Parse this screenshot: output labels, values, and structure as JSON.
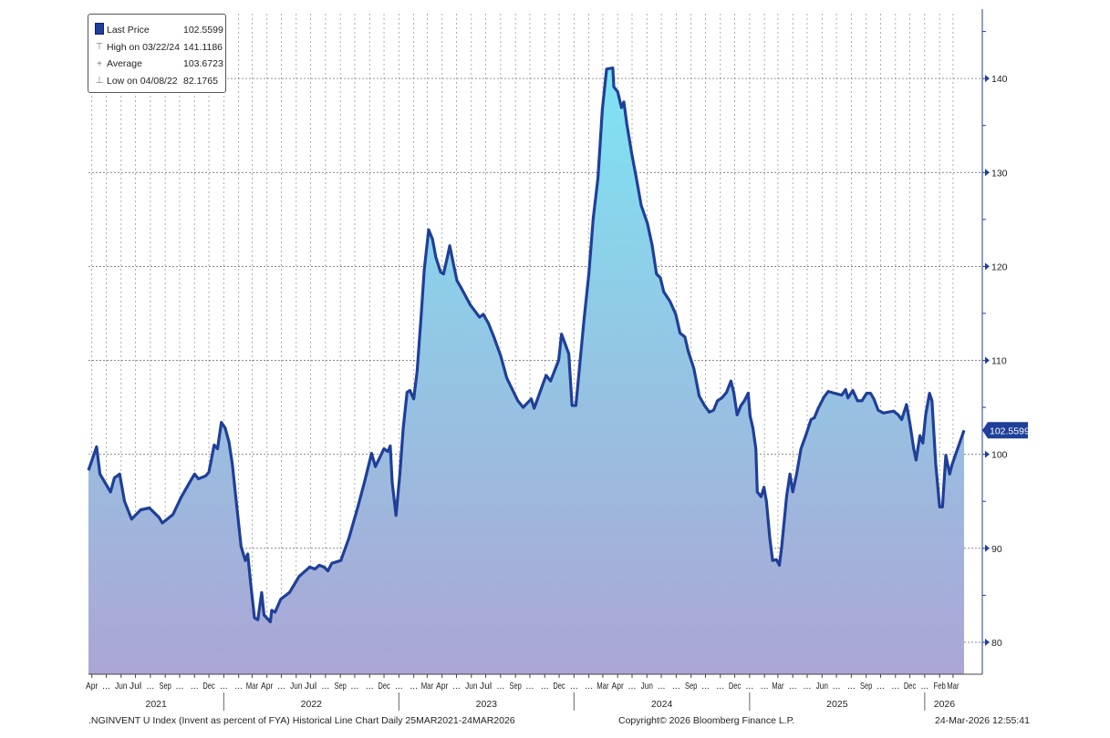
{
  "legend": {
    "items": [
      {
        "label": "Last Price",
        "value": "102.5599",
        "icon": "filled-square"
      },
      {
        "label": "High on 03/22/24",
        "value": "141.1186",
        "icon": "high-marker"
      },
      {
        "label": "Average",
        "value": "103.6723",
        "icon": "plus-marker"
      },
      {
        "label": "Low on 04/08/22",
        "value": "82.1765",
        "icon": "low-marker"
      }
    ]
  },
  "footer": {
    "description": ".NGINVENT U Index (Invent as percent of FYA) Historical Line Chart Daily 25MAR2021-24MAR2026",
    "copyright": "Copyright© 2026 Bloomberg Finance L.P.",
    "timestamp": "24-Mar-2026 12:55:41"
  },
  "chart_data": {
    "type": "area",
    "title": "",
    "xlabel": "",
    "ylabel": "",
    "x_range": [
      "2021-03-25",
      "2026-03-24"
    ],
    "ylim": [
      76.6,
      146.9
    ],
    "y_ticks": [
      80,
      90,
      100,
      110,
      120,
      130,
      140
    ],
    "y_axis_side": "right",
    "grid": true,
    "legend_placement": "top-left",
    "last_price_label": "102.5599",
    "colors": {
      "line": "#1f3f99",
      "fill_top": "#7ee3f3",
      "fill_bottom": "#aba6d4",
      "tag": "#1f3f99"
    },
    "x_tick_labels": [
      "Apr",
      "...",
      "Jun",
      "Jul",
      "...",
      "Sep",
      "...",
      "...",
      "Dec",
      "...",
      "...",
      "Mar",
      "Apr",
      "...",
      "Jun",
      "Jul",
      "...",
      "Sep",
      "...",
      "...",
      "Dec",
      "...",
      "...",
      "Mar",
      "Apr",
      "...",
      "Jun",
      "Jul",
      "...",
      "Sep",
      "...",
      "...",
      "Dec",
      "...",
      "...",
      "Mar",
      "Apr",
      "...",
      "Jun",
      "...",
      "...",
      "Sep",
      "...",
      "...",
      "Dec",
      "...",
      "...",
      "Mar",
      "...",
      "...",
      "Jun",
      "...",
      "...",
      "Sep",
      "...",
      "...",
      "Dec",
      "...",
      "Feb",
      "Mar"
    ],
    "year_labels": [
      "2021",
      "2022",
      "2023",
      "2024",
      "2025",
      "2026"
    ],
    "series": [
      {
        "points": [
          [
            "2021-03-25",
            98.3
          ],
          [
            "2021-04-11",
            100.8
          ],
          [
            "2021-04-18",
            97.9
          ],
          [
            "2021-05-10",
            96.0
          ],
          [
            "2021-05-18",
            97.5
          ],
          [
            "2021-05-29",
            97.9
          ],
          [
            "2021-06-08",
            95.0
          ],
          [
            "2021-06-23",
            93.1
          ],
          [
            "2021-07-12",
            94.1
          ],
          [
            "2021-07-30",
            94.3
          ],
          [
            "2021-08-19",
            93.3
          ],
          [
            "2021-08-26",
            92.7
          ],
          [
            "2021-09-17",
            93.6
          ],
          [
            "2021-10-05",
            95.5
          ],
          [
            "2021-10-24",
            97.2
          ],
          [
            "2021-11-01",
            97.9
          ],
          [
            "2021-11-09",
            97.4
          ],
          [
            "2021-11-24",
            97.7
          ],
          [
            "2021-12-01",
            98.1
          ],
          [
            "2021-12-12",
            101.0
          ],
          [
            "2021-12-19",
            100.6
          ],
          [
            "2021-12-27",
            103.4
          ],
          [
            "2022-01-04",
            102.8
          ],
          [
            "2022-01-12",
            101.3
          ],
          [
            "2022-01-19",
            98.9
          ],
          [
            "2022-01-27",
            95.0
          ],
          [
            "2022-02-06",
            90.2
          ],
          [
            "2022-02-15",
            88.7
          ],
          [
            "2022-02-20",
            89.4
          ],
          [
            "2022-02-26",
            86.3
          ],
          [
            "2022-03-06",
            82.6
          ],
          [
            "2022-03-13",
            82.4
          ],
          [
            "2022-03-21",
            85.3
          ],
          [
            "2022-03-26",
            82.9
          ],
          [
            "2022-04-08",
            82.18
          ],
          [
            "2022-04-11",
            83.4
          ],
          [
            "2022-04-18",
            83.2
          ],
          [
            "2022-04-30",
            84.6
          ],
          [
            "2022-05-18",
            85.3
          ],
          [
            "2022-06-07",
            87.0
          ],
          [
            "2022-06-29",
            88.0
          ],
          [
            "2022-07-10",
            87.8
          ],
          [
            "2022-07-19",
            88.2
          ],
          [
            "2022-07-29",
            88.0
          ],
          [
            "2022-08-06",
            87.6
          ],
          [
            "2022-08-14",
            88.4
          ],
          [
            "2022-09-02",
            88.7
          ],
          [
            "2022-09-19",
            91.1
          ],
          [
            "2022-10-08",
            94.5
          ],
          [
            "2022-10-21",
            97.0
          ],
          [
            "2022-11-05",
            100.1
          ],
          [
            "2022-11-13",
            98.7
          ],
          [
            "2022-12-01",
            100.6
          ],
          [
            "2022-12-09",
            100.3
          ],
          [
            "2022-12-14",
            100.9
          ],
          [
            "2022-12-18",
            97.0
          ],
          [
            "2022-12-26",
            93.5
          ],
          [
            "2023-01-03",
            97.9
          ],
          [
            "2023-01-10",
            102.8
          ],
          [
            "2023-01-18",
            106.6
          ],
          [
            "2023-01-24",
            106.8
          ],
          [
            "2023-02-01",
            105.9
          ],
          [
            "2023-02-08",
            108.8
          ],
          [
            "2023-02-16",
            114.4
          ],
          [
            "2023-02-23",
            119.7
          ],
          [
            "2023-03-04",
            123.9
          ],
          [
            "2023-03-12",
            122.9
          ],
          [
            "2023-03-19",
            121.0
          ],
          [
            "2023-03-29",
            119.4
          ],
          [
            "2023-04-04",
            119.2
          ],
          [
            "2023-04-12",
            121.0
          ],
          [
            "2023-04-17",
            122.2
          ],
          [
            "2023-04-25",
            120.2
          ],
          [
            "2023-05-02",
            118.5
          ],
          [
            "2023-05-11",
            117.7
          ],
          [
            "2023-05-30",
            115.9
          ],
          [
            "2023-06-18",
            114.6
          ],
          [
            "2023-06-26",
            114.9
          ],
          [
            "2023-07-07",
            113.9
          ],
          [
            "2023-07-18",
            112.5
          ],
          [
            "2023-08-01",
            110.5
          ],
          [
            "2023-08-14",
            108.1
          ],
          [
            "2023-09-06",
            105.7
          ],
          [
            "2023-09-17",
            105.0
          ],
          [
            "2023-10-04",
            105.9
          ],
          [
            "2023-10-10",
            104.9
          ],
          [
            "2023-10-29",
            107.6
          ],
          [
            "2023-11-04",
            108.4
          ],
          [
            "2023-11-13",
            107.8
          ],
          [
            "2023-11-30",
            110.0
          ],
          [
            "2023-12-06",
            112.8
          ],
          [
            "2023-12-21",
            110.7
          ],
          [
            "2023-12-28",
            105.2
          ],
          [
            "2024-01-05",
            105.2
          ],
          [
            "2024-01-13",
            109.6
          ],
          [
            "2024-01-22",
            114.4
          ],
          [
            "2024-02-01",
            119.2
          ],
          [
            "2024-02-10",
            125.1
          ],
          [
            "2024-02-20",
            129.4
          ],
          [
            "2024-02-29",
            136.7
          ],
          [
            "2024-03-09",
            141.0
          ],
          [
            "2024-03-22",
            141.12
          ],
          [
            "2024-03-24",
            139.1
          ],
          [
            "2024-04-01",
            138.6
          ],
          [
            "2024-04-09",
            136.9
          ],
          [
            "2024-04-14",
            137.5
          ],
          [
            "2024-04-20",
            135.2
          ],
          [
            "2024-05-01",
            131.8
          ],
          [
            "2024-05-10",
            129.4
          ],
          [
            "2024-05-20",
            126.5
          ],
          [
            "2024-06-02",
            124.6
          ],
          [
            "2024-06-12",
            122.2
          ],
          [
            "2024-06-21",
            119.2
          ],
          [
            "2024-06-29",
            118.8
          ],
          [
            "2024-07-06",
            117.3
          ],
          [
            "2024-07-19",
            116.3
          ],
          [
            "2024-07-31",
            114.9
          ],
          [
            "2024-08-09",
            112.9
          ],
          [
            "2024-08-19",
            112.5
          ],
          [
            "2024-08-26",
            111.0
          ],
          [
            "2024-09-07",
            109.1
          ],
          [
            "2024-09-18",
            106.2
          ],
          [
            "2024-09-29",
            105.2
          ],
          [
            "2024-10-09",
            104.5
          ],
          [
            "2024-10-18",
            104.7
          ],
          [
            "2024-10-26",
            105.7
          ],
          [
            "2024-11-04",
            106.0
          ],
          [
            "2024-11-14",
            106.6
          ],
          [
            "2024-11-23",
            107.8
          ],
          [
            "2024-11-29",
            106.6
          ],
          [
            "2024-12-06",
            104.2
          ],
          [
            "2024-12-14",
            105.2
          ],
          [
            "2024-12-21",
            105.7
          ],
          [
            "2024-12-29",
            106.5
          ],
          [
            "2025-01-02",
            104.1
          ],
          [
            "2025-01-08",
            102.8
          ],
          [
            "2025-01-14",
            100.6
          ],
          [
            "2025-01-17",
            96.0
          ],
          [
            "2025-01-25",
            95.5
          ],
          [
            "2025-01-31",
            96.5
          ],
          [
            "2025-02-05",
            95.0
          ],
          [
            "2025-02-12",
            91.1
          ],
          [
            "2025-02-18",
            88.7
          ],
          [
            "2025-02-26",
            88.8
          ],
          [
            "2025-03-04",
            88.2
          ],
          [
            "2025-03-09",
            90.2
          ],
          [
            "2025-03-19",
            95.5
          ],
          [
            "2025-03-26",
            97.9
          ],
          [
            "2025-04-01",
            96.0
          ],
          [
            "2025-04-09",
            97.9
          ],
          [
            "2025-04-18",
            100.6
          ],
          [
            "2025-04-28",
            102.0
          ],
          [
            "2025-05-09",
            103.7
          ],
          [
            "2025-05-16",
            103.9
          ],
          [
            "2025-05-24",
            104.9
          ],
          [
            "2025-06-05",
            106.1
          ],
          [
            "2025-06-14",
            106.7
          ],
          [
            "2025-06-27",
            106.5
          ],
          [
            "2025-07-12",
            106.3
          ],
          [
            "2025-07-20",
            106.9
          ],
          [
            "2025-07-25",
            106.0
          ],
          [
            "2025-08-04",
            106.8
          ],
          [
            "2025-08-14",
            105.7
          ],
          [
            "2025-08-23",
            105.7
          ],
          [
            "2025-09-02",
            106.5
          ],
          [
            "2025-09-10",
            106.5
          ],
          [
            "2025-09-17",
            105.9
          ],
          [
            "2025-09-26",
            104.7
          ],
          [
            "2025-10-07",
            104.4
          ],
          [
            "2025-10-28",
            104.6
          ],
          [
            "2025-11-07",
            104.2
          ],
          [
            "2025-11-14",
            103.7
          ],
          [
            "2025-11-24",
            105.3
          ],
          [
            "2025-12-01",
            103.3
          ],
          [
            "2025-12-09",
            100.6
          ],
          [
            "2025-12-14",
            99.4
          ],
          [
            "2025-12-22",
            102.0
          ],
          [
            "2025-12-28",
            101.2
          ],
          [
            "2026-01-03",
            104.2
          ],
          [
            "2026-01-11",
            106.5
          ],
          [
            "2026-01-16",
            105.7
          ],
          [
            "2026-01-24",
            98.9
          ],
          [
            "2026-02-01",
            94.4
          ],
          [
            "2026-02-07",
            94.4
          ],
          [
            "2026-02-14",
            99.9
          ],
          [
            "2026-02-22",
            97.9
          ],
          [
            "2026-02-27",
            98.9
          ],
          [
            "2026-03-24",
            102.56
          ]
        ]
      }
    ]
  }
}
